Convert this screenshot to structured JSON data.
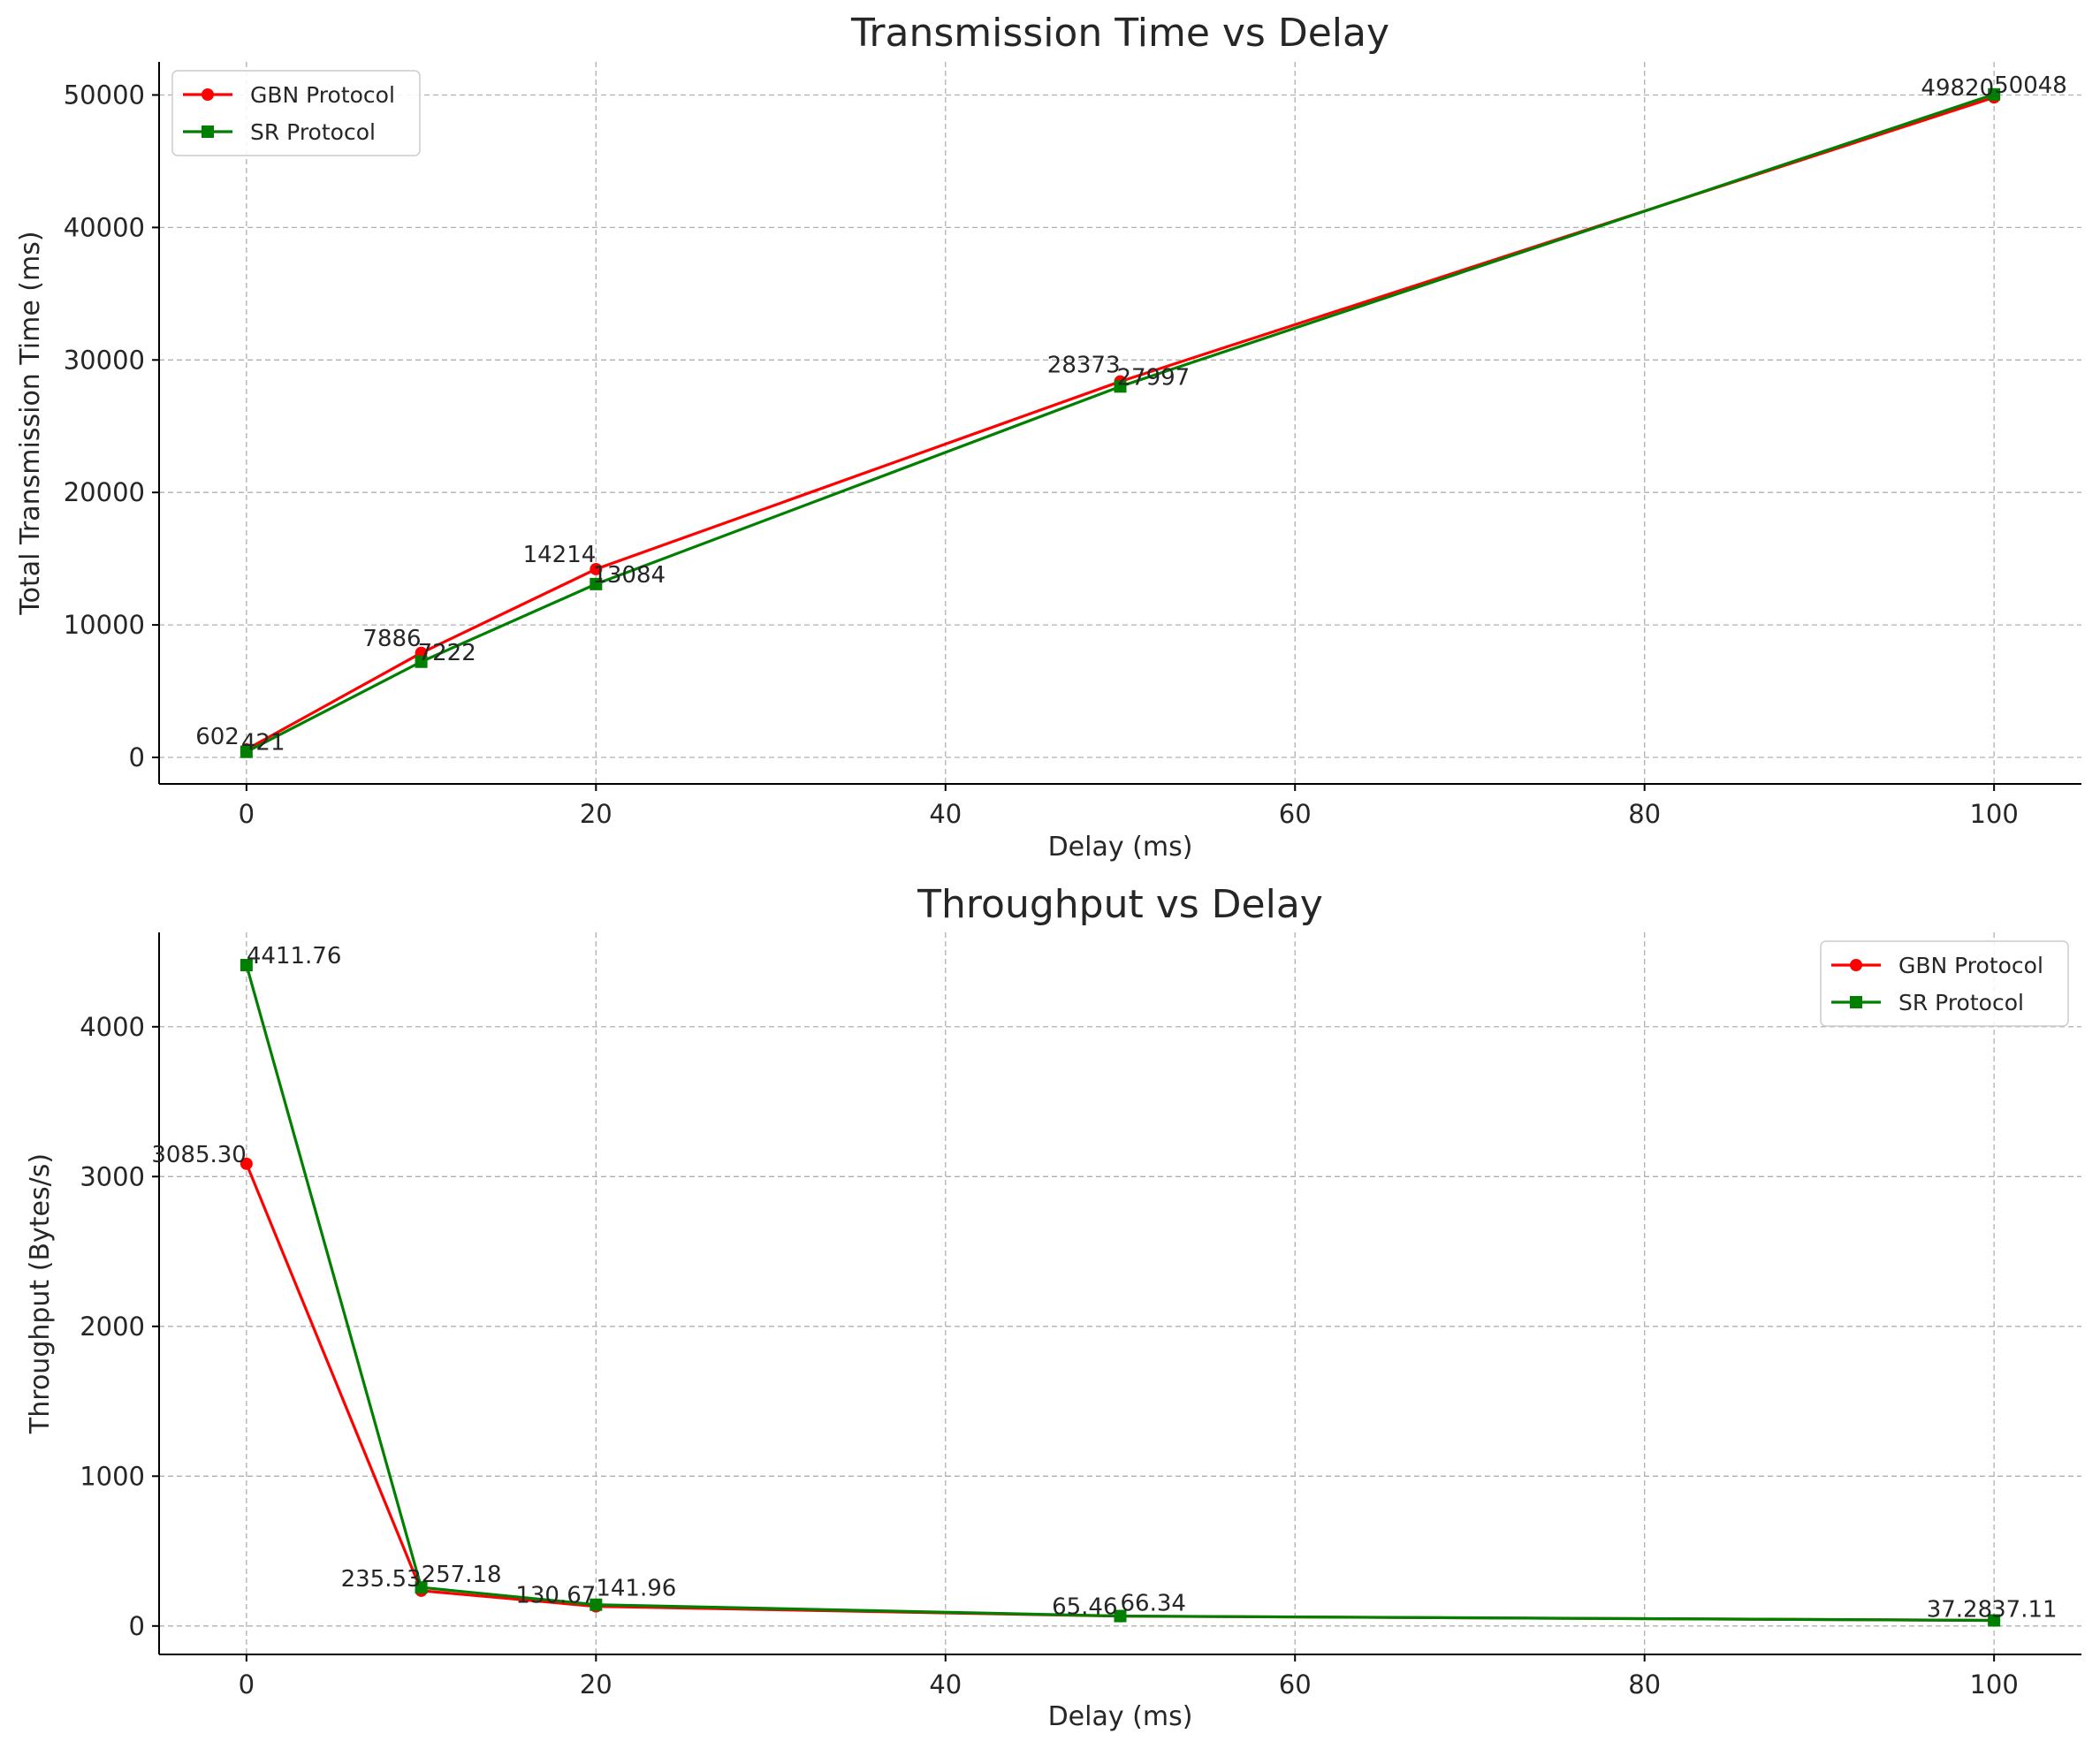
{
  "chart_data": [
    {
      "type": "line",
      "title": "Transmission Time vs Delay",
      "xlabel": "Delay (ms)",
      "ylabel": "Total Transmission Time (ms)",
      "x": [
        0,
        10,
        20,
        50,
        100
      ],
      "xlim": [
        -5,
        105
      ],
      "ylim": [
        -2000,
        52500
      ],
      "xticks": [
        0,
        20,
        40,
        60,
        80,
        100
      ],
      "yticks": [
        0,
        10000,
        20000,
        30000,
        40000,
        50000
      ],
      "grid": true,
      "legend_position": "upper left",
      "series": [
        {
          "name": "GBN Protocol",
          "color": "#ff0000",
          "marker": "circle",
          "values": [
            602,
            7886,
            14214,
            28373,
            49820
          ],
          "labels": [
            "602",
            "7886",
            "14214",
            "28373",
            "49820"
          ]
        },
        {
          "name": "SR Protocol",
          "color": "#007f00",
          "marker": "square",
          "values": [
            421,
            7222,
            13084,
            27997,
            50048
          ],
          "labels": [
            "421",
            "7222",
            "13084",
            "27997",
            "50048"
          ]
        }
      ]
    },
    {
      "type": "line",
      "title": "Throughput vs Delay",
      "xlabel": "Delay (ms)",
      "ylabel": "Throughput (Bytes/s)",
      "x": [
        0,
        10,
        20,
        50,
        100
      ],
      "xlim": [
        -5,
        105
      ],
      "ylim": [
        -190,
        4630
      ],
      "xticks": [
        0,
        20,
        40,
        60,
        80,
        100
      ],
      "yticks": [
        0,
        1000,
        2000,
        3000,
        4000
      ],
      "grid": true,
      "legend_position": "upper right",
      "series": [
        {
          "name": "GBN Protocol",
          "color": "#ff0000",
          "marker": "circle",
          "values": [
            3085.3,
            235.53,
            130.67,
            65.46,
            37.28
          ],
          "labels": [
            "3085.30",
            "235.53",
            "130.67",
            "65.46",
            "37.28"
          ]
        },
        {
          "name": "SR Protocol",
          "color": "#007f00",
          "marker": "square",
          "values": [
            4411.76,
            257.18,
            141.96,
            66.34,
            37.11
          ],
          "labels": [
            "4411.76",
            "257.18",
            "141.96",
            "66.34",
            "37.11"
          ]
        }
      ]
    }
  ]
}
